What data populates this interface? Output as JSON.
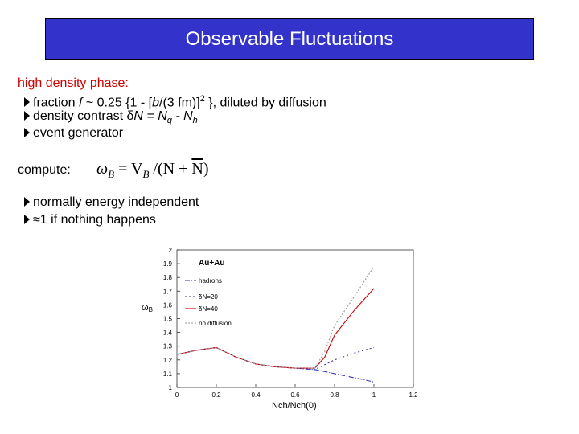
{
  "slide": {
    "title": "Observable Fluctuations",
    "section1_heading": "high density phase:",
    "bullet1": {
      "prefix": "fraction ",
      "f": "f",
      "middle": " ~ 0.25 {1 - [",
      "b": "b",
      "after_b": "/(3 fm)]",
      "exp": "2",
      "suffix": " }, diluted by diffusion"
    },
    "bullet2": {
      "prefix": "density contrast ",
      "delta": "δ",
      "n_eq": "N = N",
      "q": "q",
      "minus": " - N",
      "h": "h"
    },
    "bullet3": "event generator",
    "compute_label": "compute:",
    "formula": {
      "omega": "ω",
      "omega_sub": "B",
      "eq": " = V",
      "v_sub": "B",
      "rest": " /(N + ",
      "nbar": "N",
      "close": ")"
    },
    "bullet4": "normally energy independent",
    "bullet5_symbol": "≈",
    "bullet5_text": "1 if nothing happens"
  },
  "chart_data": {
    "type": "line",
    "title": "Au+Au",
    "xlabel": "Nch/Nch(0)",
    "ylabel": "ωB",
    "xlim": [
      0,
      1.2
    ],
    "ylim": [
      1,
      2
    ],
    "x_ticks": [
      "0",
      "0.2",
      "0.4",
      "0.6",
      "0.8",
      "1",
      "1.2"
    ],
    "y_ticks": [
      "1",
      "1.1",
      "1.2",
      "1.3",
      "1.4",
      "1.5",
      "1.6",
      "1.7",
      "1.8",
      "1.9",
      "2"
    ],
    "legend_position": "top-left",
    "series": [
      {
        "name": "hadrons",
        "color": "#3333aa",
        "dash": "6 2 1 2",
        "x": [
          0,
          0.1,
          0.2,
          0.3,
          0.4,
          0.5,
          0.6,
          0.7,
          0.8,
          0.9,
          1.0
        ],
        "y": [
          1.24,
          1.27,
          1.29,
          1.22,
          1.17,
          1.15,
          1.14,
          1.13,
          1.1,
          1.07,
          1.04
        ]
      },
      {
        "name": "δN=20",
        "color": "#3333aa",
        "dash": "2 3",
        "x": [
          0,
          0.1,
          0.2,
          0.3,
          0.4,
          0.5,
          0.6,
          0.7,
          0.8,
          0.9,
          1.0
        ],
        "y": [
          1.24,
          1.27,
          1.29,
          1.22,
          1.17,
          1.15,
          1.14,
          1.13,
          1.2,
          1.25,
          1.29
        ]
      },
      {
        "name": "δN=40",
        "color": "#cc0000",
        "dash": "",
        "x": [
          0,
          0.1,
          0.2,
          0.3,
          0.4,
          0.5,
          0.6,
          0.7,
          0.75,
          0.8,
          0.9,
          1.0
        ],
        "y": [
          1.24,
          1.27,
          1.29,
          1.22,
          1.17,
          1.15,
          1.14,
          1.14,
          1.22,
          1.38,
          1.56,
          1.72
        ]
      },
      {
        "name": "no diffusion",
        "color": "#999999",
        "dash": "2 2",
        "x": [
          0,
          0.1,
          0.2,
          0.3,
          0.4,
          0.5,
          0.6,
          0.7,
          0.75,
          0.8,
          0.9,
          1.0
        ],
        "y": [
          1.24,
          1.27,
          1.29,
          1.22,
          1.17,
          1.15,
          1.14,
          1.14,
          1.26,
          1.45,
          1.66,
          1.88
        ]
      }
    ]
  }
}
